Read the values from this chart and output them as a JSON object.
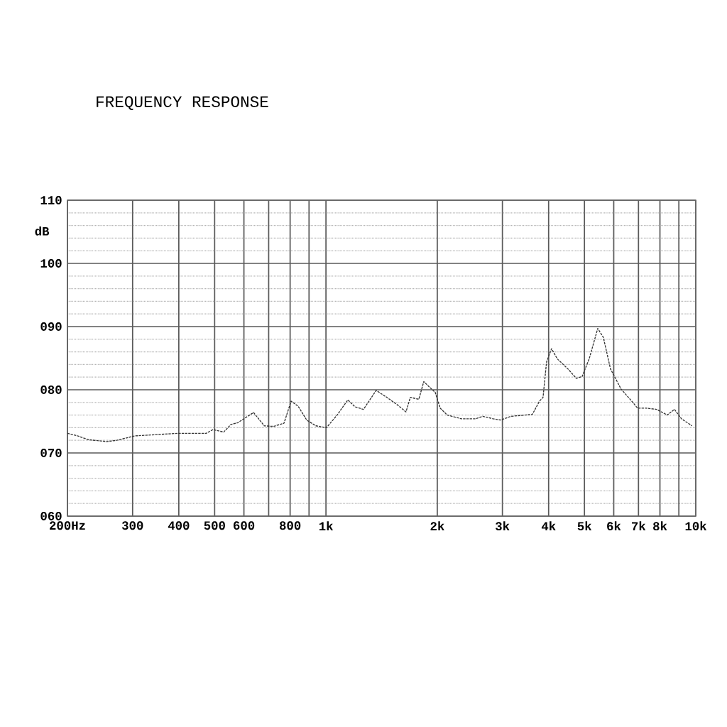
{
  "chart_data": {
    "type": "line",
    "title": "FREQUENCY RESPONSE",
    "ylabel": "dB",
    "log": "x",
    "xlim": [
      200,
      10000
    ],
    "ylim": [
      60,
      110
    ],
    "xticks": [
      {
        "value": 200,
        "label": "200Hz"
      },
      300,
      400,
      500,
      600,
      {
        "value": 700,
        "label": null
      },
      800,
      {
        "value": 900,
        "label": null
      },
      {
        "value": 1000,
        "label": "1k"
      },
      {
        "value": 2000,
        "label": "2k"
      },
      {
        "value": 3000,
        "label": "3k"
      },
      {
        "value": 4000,
        "label": "4k"
      },
      {
        "value": 5000,
        "label": "5k"
      },
      {
        "value": 6000,
        "label": "6k"
      },
      {
        "value": 7000,
        "label": "7k"
      },
      {
        "value": 8000,
        "label": "8k"
      },
      {
        "value": 9000,
        "label": null
      },
      {
        "value": 10000,
        "label": "10k"
      }
    ],
    "yticks": [
      {
        "value": 60,
        "label": "060"
      },
      {
        "value": 70,
        "label": "070"
      },
      {
        "value": 80,
        "label": "080"
      },
      {
        "value": 90,
        "label": "090"
      },
      100,
      110
    ],
    "grid": true,
    "line_style": "dashed",
    "marker": "none",
    "series": [
      {
        "color": "#333333",
        "x": [
          200,
          213,
          228,
          255,
          272,
          304,
          348,
          397,
          474,
          495,
          529,
          553,
          578,
          637,
          681,
          721,
          770,
          805,
          841,
          887,
          939,
          1003,
          1072,
          1146,
          1198,
          1263,
          1367,
          1461,
          1561,
          1646,
          1691,
          1783,
          1839,
          1906,
          1974,
          2036,
          2128,
          2325,
          2539,
          2654,
          2836,
          2965,
          3167,
          3459,
          3615,
          3779,
          3864,
          3950,
          4074,
          4221,
          4511,
          4755,
          4928,
          5150,
          5431,
          5624,
          5880,
          6283,
          6713,
          6956,
          7336,
          7836,
          8375,
          8755,
          9148,
          9771
        ],
        "values": [
          73.1,
          72.7,
          72.1,
          71.8,
          72.0,
          72.7,
          72.9,
          73.1,
          73.1,
          73.7,
          73.3,
          74.5,
          74.8,
          76.4,
          74.3,
          74.2,
          74.7,
          78.2,
          77.4,
          75.2,
          74.3,
          74.0,
          76.0,
          78.4,
          77.3,
          76.9,
          79.9,
          78.8,
          77.6,
          76.5,
          78.8,
          78.5,
          81.3,
          80.4,
          79.6,
          77.1,
          76.0,
          75.4,
          75.4,
          75.8,
          75.4,
          75.2,
          75.8,
          76.0,
          76.1,
          78.2,
          78.8,
          84.4,
          86.5,
          84.9,
          83.3,
          81.8,
          82.1,
          84.9,
          89.7,
          88.3,
          83.3,
          80.1,
          78.2,
          77.1,
          77.1,
          76.9,
          76.0,
          76.9,
          75.4,
          74.3
        ]
      }
    ]
  }
}
